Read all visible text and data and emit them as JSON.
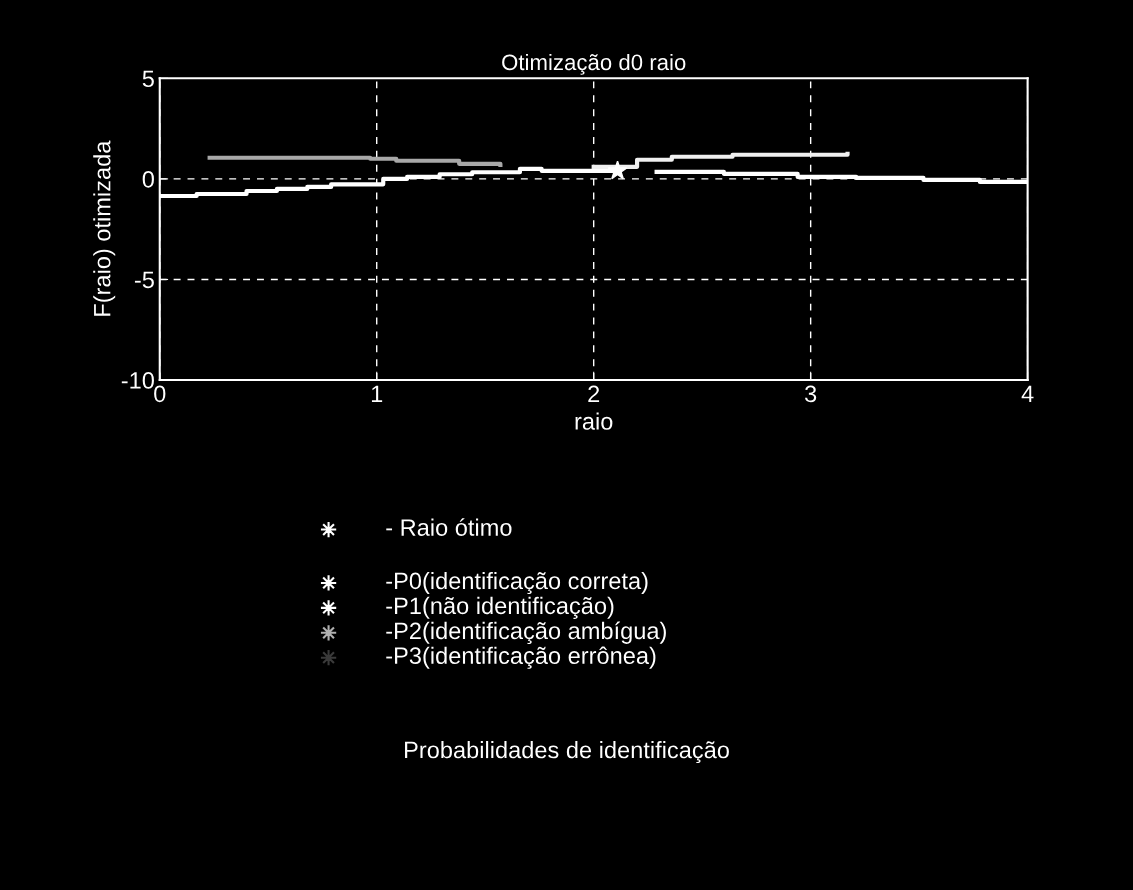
{
  "chart_data": {
    "type": "step",
    "title": "Otimização d0 raio",
    "xlabel": "raio",
    "ylabel": "F(raio) otimizada",
    "xlim": [
      0,
      4
    ],
    "xticks": [
      0,
      1,
      2,
      3,
      4
    ],
    "ylim": [
      -10,
      5
    ],
    "yticks": [
      -10,
      -5,
      0,
      5
    ],
    "grid": true,
    "series": [
      {
        "type": "scatter",
        "marker": "star",
        "color": "#ffffff",
        "x": [
          2.11
        ],
        "values": [
          0.4
        ]
      },
      {
        "color": "#ffffff",
        "x": [
          0,
          0.17,
          0.4,
          0.54,
          0.68,
          0.79,
          0.96,
          1.03,
          1.14,
          1.29,
          1.44,
          1.66,
          1.76,
          1.95,
          2.1,
          2.29,
          2.6,
          2.94,
          3.21,
          3.52,
          3.78,
          4.0
        ],
        "values": [
          -0.85,
          -0.75,
          -0.6,
          -0.5,
          -0.4,
          -0.27,
          -0.27,
          0.0,
          0.1,
          0.23,
          0.33,
          0.5,
          0.4,
          0.4,
          null,
          0.35,
          0.25,
          0.1,
          0.05,
          -0.05,
          -0.15,
          -0.15
        ]
      },
      {
        "color": "#f0f0f0",
        "x": [
          2.0,
          2.2,
          2.36,
          2.64,
          3.17
        ],
        "values": [
          0.6,
          0.95,
          1.1,
          1.2,
          1.25
        ]
      },
      {
        "color": "#a8a8a8",
        "x": [
          0.23,
          0.97,
          1.09,
          1.38,
          1.57
        ],
        "values": [
          1.05,
          1.0,
          0.9,
          0.75,
          0.7
        ]
      }
    ],
    "annotations": [
      "- Raio ótimo",
      "-P0(identificação correta)",
      "-P1(não identificação)",
      "-P2(identificação ambígua)",
      "-P3(identificação errônea)",
      "Probabilidades de identificação"
    ]
  }
}
